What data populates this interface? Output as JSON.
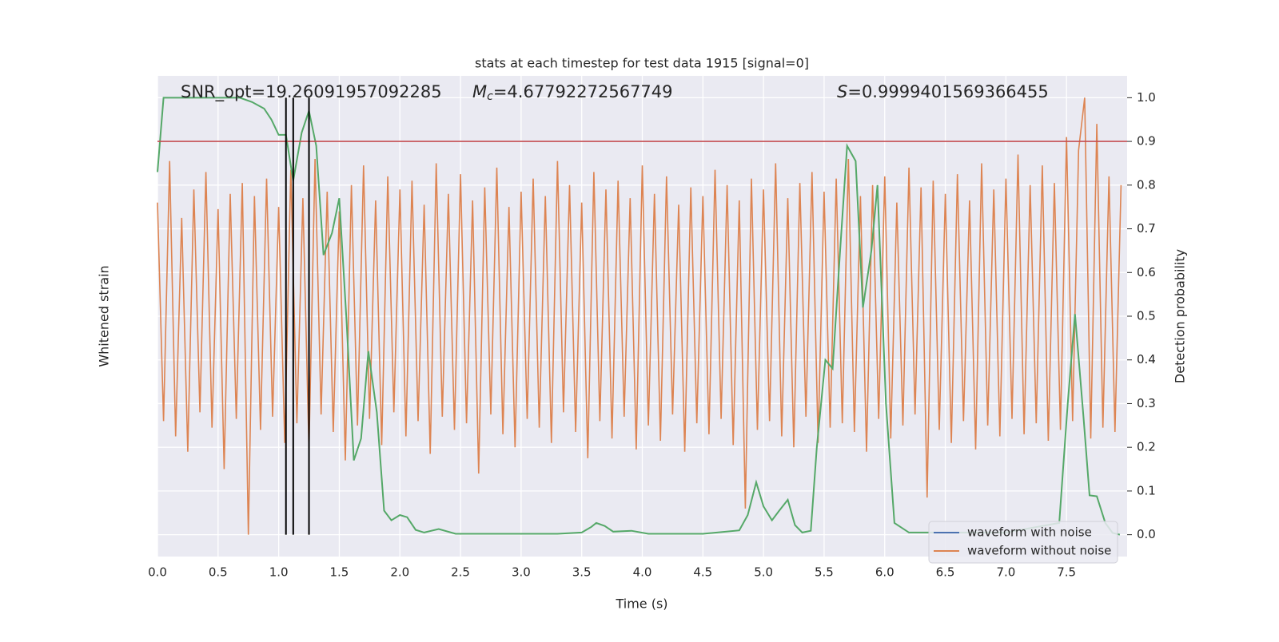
{
  "chart_data": {
    "type": "line",
    "title": "stats at each timestep for test data 1915 [signal=0]",
    "xlabel": "Time (s)",
    "ylabel": "Whitened strain",
    "y2label": "Detection probability",
    "annotations": {
      "snr": "SNR_opt=19.26091957092285",
      "mc_symbol": "M",
      "mc_sub": "c",
      "mc_value": "=4.67792272567749",
      "s_symbol": "S",
      "s_value": "=0.9999401569366455"
    },
    "xlim": [
      0,
      8.0
    ],
    "ylim": [
      -1.1,
      1.1
    ],
    "y2lim": [
      -0.05,
      1.05
    ],
    "xticks": [
      {
        "value": 0,
        "label": "0.0"
      },
      {
        "value": 0.5,
        "label": "0.5"
      },
      {
        "value": 1,
        "label": "1.0"
      },
      {
        "value": 1.5,
        "label": "1.5"
      },
      {
        "value": 2,
        "label": "2.0"
      },
      {
        "value": 2.5,
        "label": "2.5"
      },
      {
        "value": 3,
        "label": "3.0"
      },
      {
        "value": 3.5,
        "label": "3.5"
      },
      {
        "value": 4,
        "label": "4.0"
      },
      {
        "value": 4.5,
        "label": "4.5"
      },
      {
        "value": 5,
        "label": "5.0"
      },
      {
        "value": 5.5,
        "label": "5.5"
      },
      {
        "value": 6,
        "label": "6.0"
      },
      {
        "value": 6.5,
        "label": "6.5"
      },
      {
        "value": 7,
        "label": "7.0"
      },
      {
        "value": 7.5,
        "label": "7.5"
      }
    ],
    "y2ticks": [
      {
        "value": 0,
        "label": "0.0"
      },
      0.1,
      0.2,
      0.3,
      0.4,
      0.5,
      0.6,
      0.7,
      0.8,
      0.9,
      {
        "value": 1,
        "label": "1.0"
      }
    ],
    "grid": true,
    "legend": "lower right",
    "threshold": {
      "value": 0.9,
      "color": "#c44e52"
    },
    "vlines": {
      "x": [
        1.06,
        1.12,
        1.25
      ],
      "range": [
        0,
        1
      ],
      "color": "#000000"
    },
    "series": [
      {
        "name": "waveform with noise",
        "color": "#4c72b0",
        "legend": true,
        "x": [
          0,
          0.05,
          0.1,
          0.15,
          0.2,
          0.25,
          0.3,
          0.35,
          0.4,
          0.45,
          0.5,
          0.55,
          0.6,
          0.65,
          0.7,
          0.75,
          0.8,
          0.85,
          0.9,
          0.95,
          1,
          1.05,
          1.1,
          1.15,
          1.2,
          1.25,
          1.3,
          1.35,
          1.4,
          1.45,
          1.5,
          1.55,
          1.6,
          1.65,
          1.7,
          1.75,
          1.8,
          1.85,
          1.9,
          1.95,
          2,
          2.05,
          2.1,
          2.15,
          2.2,
          2.25,
          2.3,
          2.35,
          2.4,
          2.45,
          2.5,
          2.55,
          2.6,
          2.65,
          2.7,
          2.75,
          2.8,
          2.85,
          2.9,
          2.95,
          3,
          3.05,
          3.1,
          3.15,
          3.2,
          3.25,
          3.3,
          3.35,
          3.4,
          3.45,
          3.5,
          3.55,
          3.6,
          3.65,
          3.7,
          3.75,
          3.8,
          3.85,
          3.9,
          3.95,
          4,
          4.05,
          4.1,
          4.15,
          4.2,
          4.25,
          4.3,
          4.35,
          4.4,
          4.45,
          4.5,
          4.55,
          4.6,
          4.65,
          4.7,
          4.75,
          4.8,
          4.85,
          4.9,
          4.95,
          5,
          5.05,
          5.1,
          5.15,
          5.2,
          5.25,
          5.3,
          5.35,
          5.4,
          5.45,
          5.5,
          5.55,
          5.6,
          5.65,
          5.7,
          5.75,
          5.8,
          5.85,
          5.9,
          5.95,
          6,
          6.05,
          6.1,
          6.15,
          6.2,
          6.25,
          6.3,
          6.35,
          6.4,
          6.45,
          6.5,
          6.55,
          6.6,
          6.65,
          6.7,
          6.75,
          6.8,
          6.85,
          6.9,
          6.95,
          7,
          7.05,
          7.1,
          7.15,
          7.2,
          7.25,
          7.3,
          7.35,
          7.4,
          7.45,
          7.5,
          7.55,
          7.6,
          7.65,
          7.7,
          7.75,
          7.8,
          7.85,
          7.9,
          7.95
        ],
        "values": [
          null,
          null,
          null,
          null,
          null,
          null,
          null,
          null,
          null,
          null,
          null,
          null,
          null,
          null,
          null,
          null,
          null,
          null,
          null,
          null,
          null,
          null,
          null,
          null,
          null,
          null,
          null,
          null,
          null,
          null,
          null,
          null,
          null,
          null,
          null,
          null,
          null,
          null,
          null,
          null,
          null,
          null,
          null,
          null,
          null,
          null,
          null,
          null,
          null,
          null,
          null,
          null,
          null,
          null,
          null,
          null,
          null,
          null,
          null,
          null,
          null,
          null,
          null,
          null,
          null,
          null,
          null,
          null,
          null,
          null,
          null,
          null,
          null,
          null,
          null,
          null,
          null,
          null,
          null,
          null,
          null,
          null,
          null,
          null,
          null,
          null,
          null,
          null,
          null,
          null,
          null,
          null,
          null,
          null,
          null,
          null,
          null,
          null,
          null,
          null,
          null,
          null,
          null,
          null,
          null,
          null,
          null,
          null,
          null,
          null,
          null,
          null,
          null,
          null,
          null,
          null,
          null,
          null,
          null,
          null,
          null,
          null,
          null,
          null,
          null,
          null,
          null,
          null,
          null,
          null,
          null,
          null,
          null,
          null,
          null,
          null,
          null,
          null,
          null,
          null,
          null,
          null,
          null,
          null,
          null,
          null,
          null,
          null,
          null,
          null,
          null,
          null,
          null,
          null,
          null,
          null,
          null,
          null,
          null,
          null
        ]
      },
      {
        "name": "waveform without noise",
        "color": "#dd8452",
        "legend": true,
        "x": [
          0,
          0.05,
          0.1,
          0.15,
          0.2,
          0.25,
          0.3,
          0.35,
          0.4,
          0.45,
          0.5,
          0.55,
          0.6,
          0.65,
          0.7,
          0.75,
          0.8,
          0.85,
          0.9,
          0.95,
          1,
          1.05,
          1.1,
          1.15,
          1.2,
          1.25,
          1.3,
          1.35,
          1.4,
          1.45,
          1.5,
          1.55,
          1.6,
          1.65,
          1.7,
          1.75,
          1.8,
          1.85,
          1.9,
          1.95,
          2,
          2.05,
          2.1,
          2.15,
          2.2,
          2.25,
          2.3,
          2.35,
          2.4,
          2.45,
          2.5,
          2.55,
          2.6,
          2.65,
          2.7,
          2.75,
          2.8,
          2.85,
          2.9,
          2.95,
          3,
          3.05,
          3.1,
          3.15,
          3.2,
          3.25,
          3.3,
          3.35,
          3.4,
          3.45,
          3.5,
          3.55,
          3.6,
          3.65,
          3.7,
          3.75,
          3.8,
          3.85,
          3.9,
          3.95,
          4,
          4.05,
          4.1,
          4.15,
          4.2,
          4.25,
          4.3,
          4.35,
          4.4,
          4.45,
          4.5,
          4.55,
          4.6,
          4.65,
          4.7,
          4.75,
          4.8,
          4.85,
          4.9,
          4.95,
          5,
          5.05,
          5.1,
          5.15,
          5.2,
          5.25,
          5.3,
          5.35,
          5.4,
          5.45,
          5.5,
          5.55,
          5.6,
          5.65,
          5.7,
          5.75,
          5.8,
          5.85,
          5.9,
          5.95,
          6,
          6.05,
          6.1,
          6.15,
          6.2,
          6.25,
          6.3,
          6.35,
          6.4,
          6.45,
          6.5,
          6.55,
          6.6,
          6.65,
          6.7,
          6.75,
          6.8,
          6.85,
          6.9,
          6.95,
          7,
          7.05,
          7.1,
          7.15,
          7.2,
          7.25,
          7.3,
          7.35,
          7.4,
          7.45,
          7.5,
          7.55,
          7.6,
          7.65,
          7.7,
          7.75,
          7.8,
          7.85,
          7.9,
          7.95
        ],
        "values": [
          0.52,
          -0.48,
          0.71,
          -0.55,
          0.45,
          -0.62,
          0.58,
          -0.44,
          0.66,
          -0.51,
          0.49,
          -0.7,
          0.56,
          -0.47,
          0.61,
          -1.0,
          0.55,
          -0.52,
          0.63,
          -0.46,
          0.5,
          -0.58,
          0.67,
          -0.49,
          0.54,
          -0.61,
          0.72,
          -0.45,
          0.57,
          -0.53,
          0.48,
          -0.66,
          0.6,
          -0.5,
          0.69,
          -0.47,
          0.53,
          -0.59,
          0.64,
          -0.44,
          0.58,
          -0.55,
          0.62,
          -0.48,
          0.51,
          -0.63,
          0.7,
          -0.46,
          0.56,
          -0.52,
          0.65,
          -0.49,
          0.53,
          -0.72,
          0.59,
          -0.45,
          0.68,
          -0.54,
          0.5,
          -0.6,
          0.57,
          -0.47,
          0.63,
          -0.51,
          0.55,
          -0.58,
          0.71,
          -0.44,
          0.6,
          -0.53,
          0.52,
          -0.65,
          0.66,
          -0.48,
          0.58,
          -0.56,
          0.62,
          -0.46,
          0.54,
          -0.61,
          0.69,
          -0.5,
          0.56,
          -0.57,
          0.64,
          -0.45,
          0.51,
          -0.62,
          0.59,
          -0.49,
          0.55,
          -0.54,
          0.67,
          -0.47,
          0.6,
          -0.59,
          0.53,
          -0.88,
          0.63,
          -0.52,
          0.58,
          -0.48,
          0.7,
          -0.55,
          0.54,
          -0.6,
          0.61,
          -0.46,
          0.66,
          -0.58,
          0.57,
          -0.51,
          0.63,
          -0.49,
          0.72,
          -0.53,
          0.55,
          -0.62,
          0.6,
          -0.47,
          0.64,
          -0.56,
          0.52,
          -0.5,
          0.68,
          -0.45,
          0.59,
          -0.83,
          0.62,
          -0.52,
          0.56,
          -0.58,
          0.65,
          -0.48,
          0.53,
          -0.61,
          0.7,
          -0.5,
          0.58,
          -0.55,
          0.63,
          -0.47,
          0.74,
          -0.54,
          0.6,
          -0.49,
          0.69,
          -0.57,
          0.61,
          -0.52,
          0.82,
          -0.48,
          0.76,
          1.0,
          -0.56,
          0.88,
          -0.51,
          0.64,
          -0.53,
          0.6
        ]
      },
      {
        "name": "detection probability",
        "color": "#55a868",
        "axis": "y2",
        "legend": false,
        "x": [
          0,
          0.05,
          0.12,
          0.68,
          0.78,
          0.88,
          0.94,
          1.0,
          1.06,
          1.12,
          1.19,
          1.25,
          1.31,
          1.37,
          1.44,
          1.5,
          1.56,
          1.62,
          1.68,
          1.74,
          1.81,
          1.87,
          1.93,
          2.0,
          2.06,
          2.13,
          2.2,
          2.32,
          2.46,
          2.8,
          3.0,
          3.3,
          3.5,
          3.58,
          3.62,
          3.69,
          3.76,
          3.91,
          4.05,
          4.5,
          4.8,
          4.87,
          4.94,
          5.0,
          5.07,
          5.13,
          5.2,
          5.26,
          5.32,
          5.39,
          5.44,
          5.51,
          5.57,
          5.63,
          5.69,
          5.76,
          5.82,
          5.89,
          5.94,
          6.01,
          6.08,
          6.2,
          7.0,
          7.44,
          7.51,
          7.57,
          7.64,
          7.69,
          7.75,
          7.82,
          7.88,
          7.94
        ],
        "values": [
          0.83,
          1.0,
          1.0,
          1.0,
          0.99,
          0.975,
          0.95,
          0.915,
          0.915,
          0.81,
          0.92,
          0.97,
          0.89,
          0.64,
          0.69,
          0.77,
          0.49,
          0.17,
          0.22,
          0.42,
          0.28,
          0.055,
          0.033,
          0.045,
          0.04,
          0.011,
          0.005,
          0.013,
          0.002,
          0.002,
          0.002,
          0.002,
          0.005,
          0.018,
          0.027,
          0.02,
          0.007,
          0.009,
          0.002,
          0.002,
          0.01,
          0.045,
          0.12,
          0.065,
          0.033,
          0.055,
          0.08,
          0.022,
          0.005,
          0.009,
          0.2,
          0.4,
          0.38,
          0.64,
          0.89,
          0.855,
          0.52,
          0.65,
          0.8,
          0.3,
          0.027,
          0.005,
          0.005,
          0.027,
          0.3,
          0.505,
          0.27,
          0.09,
          0.088,
          0.027,
          0.004,
          0.0
        ]
      }
    ]
  }
}
